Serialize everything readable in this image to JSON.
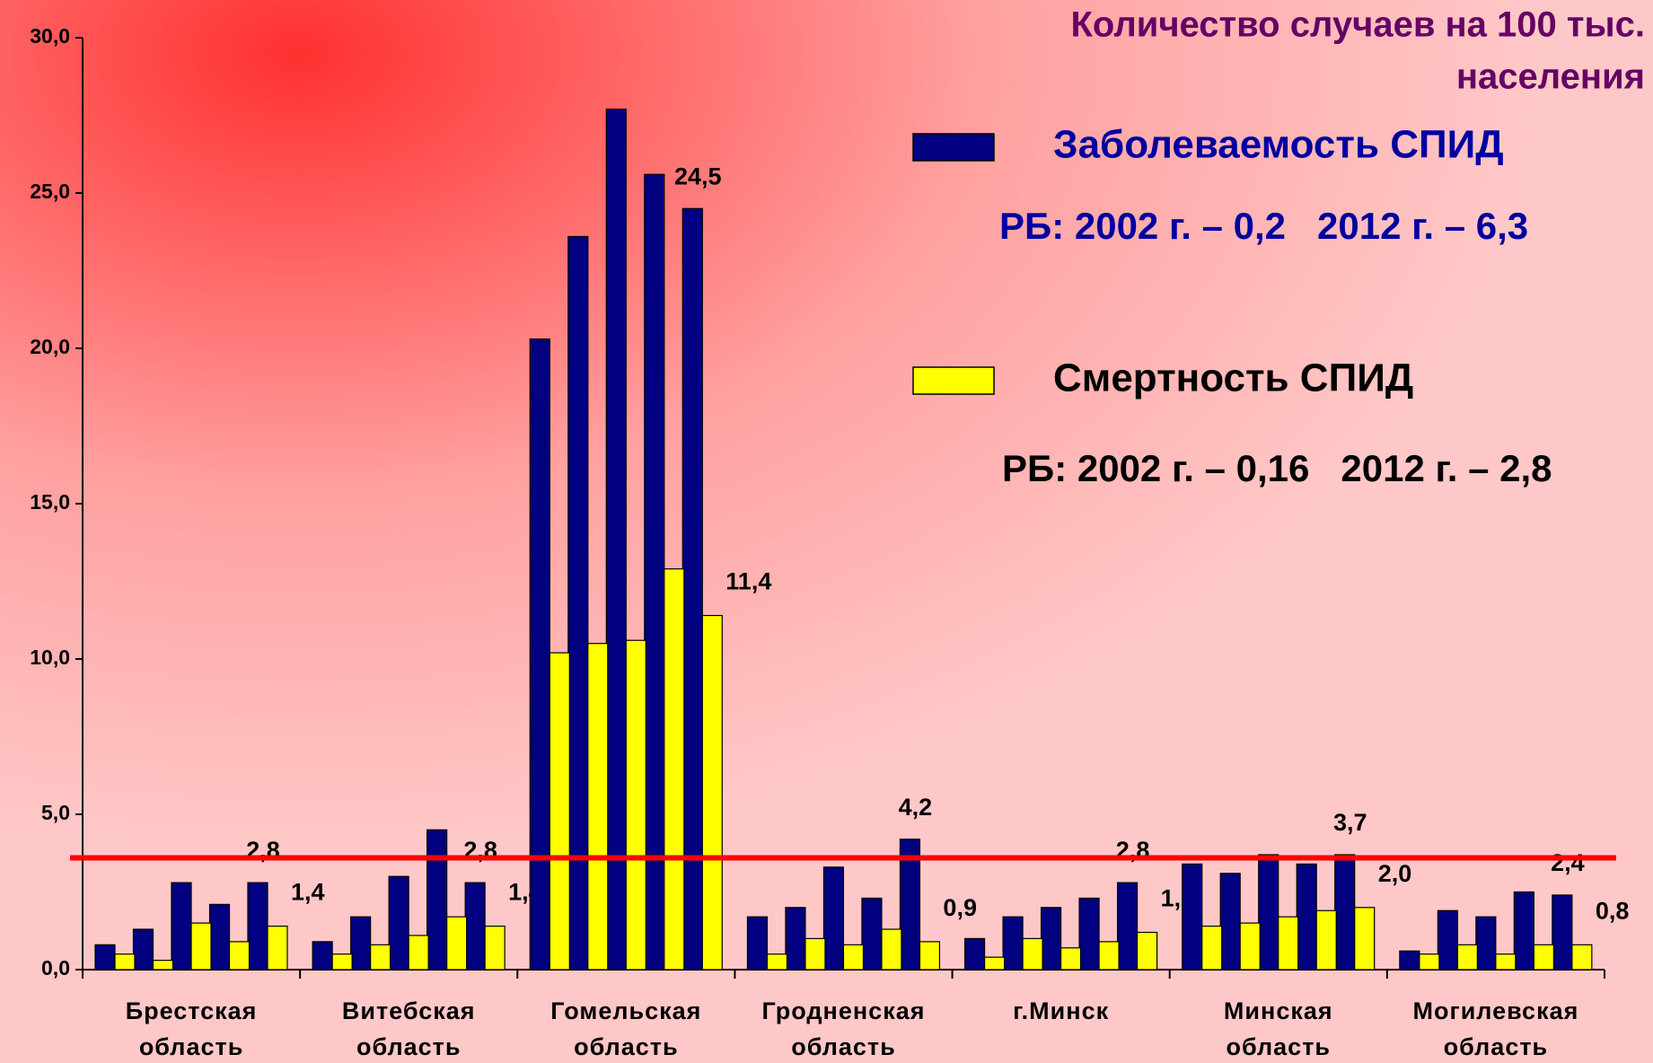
{
  "chart_data": {
    "type": "bar",
    "title": [
      "Количество случаев на 100 тыс.",
      "населения"
    ],
    "categories": [
      "Брестская\nобласть",
      "Витебская\nобласть",
      "Гомельская\nобласть",
      "Гродненская\nобласть",
      "г.Минск",
      "Минская\nобласть",
      "Могилевская\nобласть"
    ],
    "series": [
      {
        "name": "Заболеваемость СПИД",
        "color": "#000080",
        "note": "РБ: 2002 г. – 0,2   2012 г. – 6,3",
        "values": [
          [
            0.8,
            1.3,
            2.8,
            2.1,
            2.8
          ],
          [
            0.9,
            1.7,
            3.0,
            4.5,
            2.8
          ],
          [
            20.3,
            23.6,
            27.7,
            25.6,
            24.5
          ],
          [
            1.7,
            2.0,
            3.3,
            2.3,
            4.2
          ],
          [
            1.0,
            1.7,
            2.0,
            2.3,
            2.8
          ],
          [
            3.4,
            3.1,
            3.7,
            3.4,
            3.7
          ],
          [
            0.6,
            1.9,
            1.7,
            2.5,
            2.4
          ]
        ],
        "value_labels": [
          "2,8",
          "2,8",
          "24,5",
          "4,2",
          "2,8",
          "3,7",
          "2,4"
        ]
      },
      {
        "name": "Смертность СПИД",
        "color": "#ffff00",
        "note": "РБ: 2002 г. – 0,16   2012 г. – 2,8",
        "values": [
          [
            0.5,
            0.3,
            1.5,
            0.9,
            1.4
          ],
          [
            0.5,
            0.8,
            1.1,
            1.7,
            1.4
          ],
          [
            10.2,
            10.5,
            10.6,
            12.9,
            11.4
          ],
          [
            0.5,
            1.0,
            0.8,
            1.3,
            0.9
          ],
          [
            0.4,
            1.0,
            0.7,
            0.9,
            1.2
          ],
          [
            1.4,
            1.5,
            1.7,
            1.9,
            2.0
          ],
          [
            0.5,
            0.8,
            0.5,
            0.8,
            0.8
          ]
        ],
        "value_labels": [
          "1,4",
          "1,4",
          "11,4",
          "0,9",
          "1,2",
          "2,0",
          "0,8"
        ]
      }
    ],
    "ylim": [
      0,
      30
    ],
    "yticks": [
      {
        "value": 0,
        "label": "0,0"
      },
      {
        "value": 5,
        "label": "5,0"
      },
      {
        "value": 10,
        "label": "10,0"
      },
      {
        "value": 15,
        "label": "15,0"
      },
      {
        "value": 20,
        "label": "20,0"
      },
      {
        "value": 25,
        "label": "25,0"
      },
      {
        "value": 30,
        "label": "30,0"
      }
    ],
    "reference_line": {
      "value": 3.6,
      "color": "#ff0000"
    }
  }
}
